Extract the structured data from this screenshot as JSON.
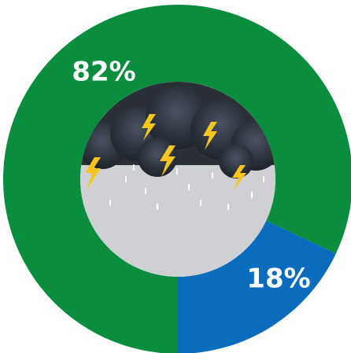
{
  "chart_data": {
    "type": "donut",
    "categories": [
      null,
      null
    ],
    "values": [
      82,
      18
    ],
    "value_labels": [
      "82%",
      "18%"
    ],
    "colors": [
      "#0b8d3e",
      "#0a6cbd"
    ]
  }
}
